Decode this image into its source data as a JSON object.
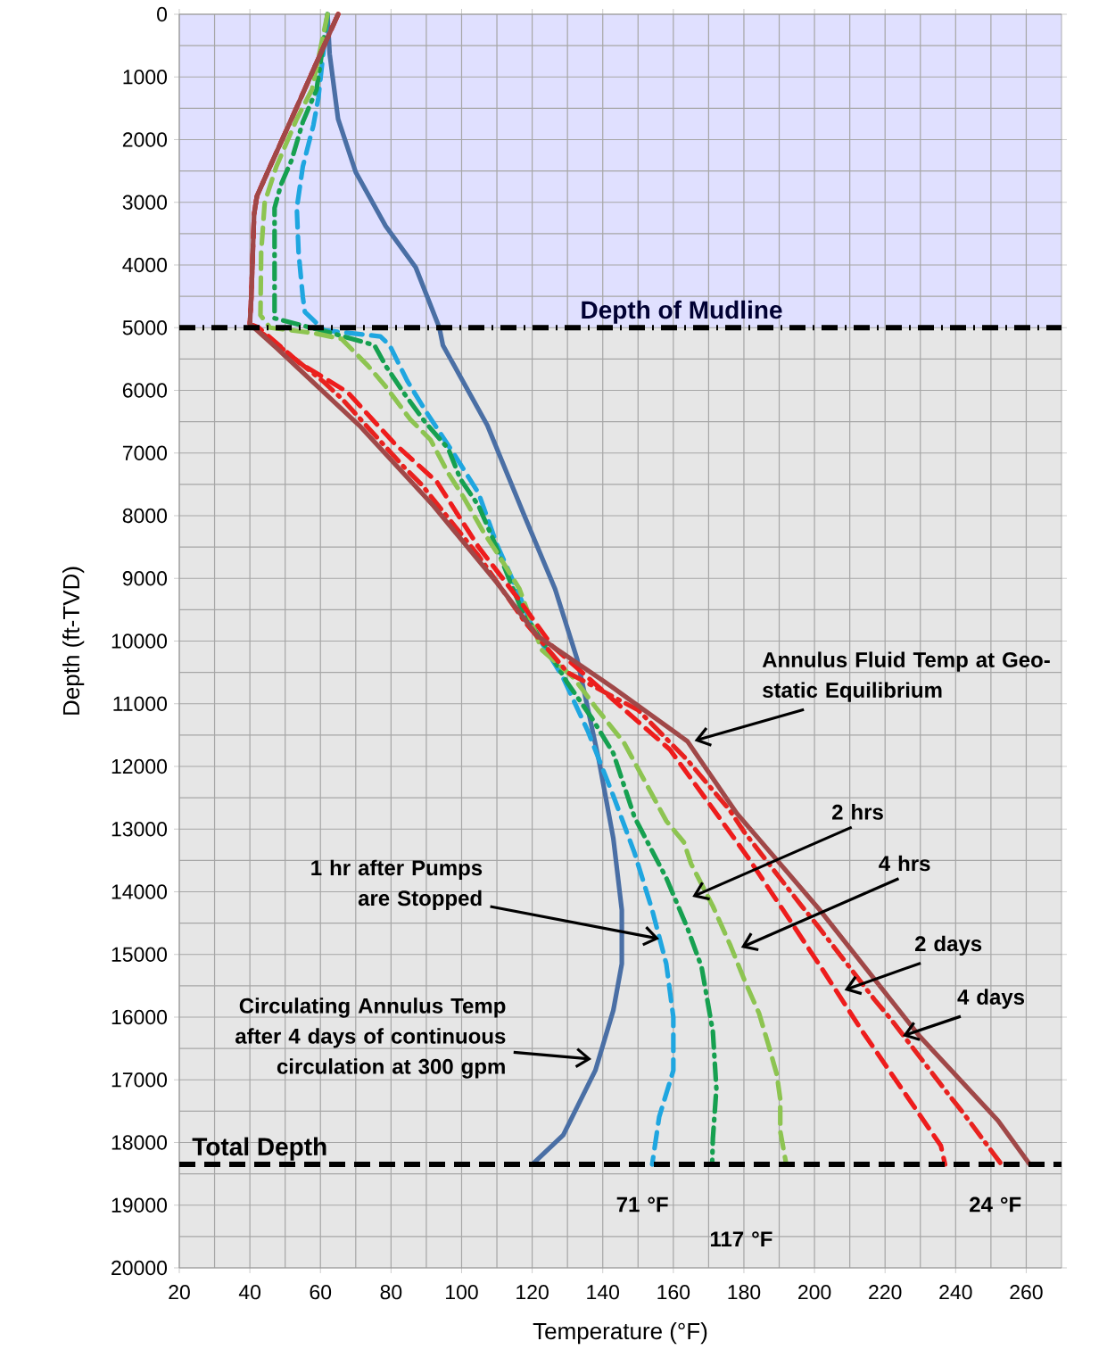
{
  "chart_data": {
    "type": "line",
    "xlabel": "Temperature (°F)",
    "ylabel": "Depth (ft-TVD)",
    "xlim": [
      20,
      270
    ],
    "xticks": [
      20,
      40,
      60,
      80,
      100,
      120,
      140,
      160,
      180,
      200,
      220,
      240,
      260
    ],
    "ylim": [
      20000,
      0
    ],
    "yticks": [
      0,
      1000,
      2000,
      3000,
      4000,
      5000,
      6000,
      7000,
      8000,
      9000,
      10000,
      11000,
      12000,
      13000,
      14000,
      15000,
      16000,
      17000,
      18000,
      19000,
      20000
    ],
    "grid": true,
    "bands": [
      {
        "axis": "y",
        "from": 0,
        "to": 5000,
        "color": "#e0e0ff"
      },
      {
        "axis": "y",
        "from": 5000,
        "to": 20000,
        "color": "#e6e6e6"
      }
    ],
    "ref_lines": [
      {
        "axis": "y",
        "value": 5000,
        "label": "Depth of Mudline",
        "color": "#000000",
        "line_style": "dashdot"
      },
      {
        "axis": "y",
        "value": 18350,
        "label": "Total Depth",
        "color": "#000000",
        "line_style": "dashed"
      }
    ],
    "series": [
      {
        "color": "#4a6fa5",
        "line_style": "solid",
        "x": [
          62,
          62.6,
          65,
          70,
          78.5,
          87,
          93.7,
          94.7,
          107.3,
          118,
          126.5,
          132.8,
          138.9,
          143,
          145.4,
          145.4,
          143,
          137.9,
          128.8,
          120
        ],
        "values": [
          0,
          630,
          1670,
          2520,
          3380,
          4040,
          5000,
          5280,
          6560,
          8030,
          9170,
          10300,
          11900,
          13150,
          14290,
          15150,
          15890,
          16850,
          17880,
          18350
        ]
      },
      {
        "color": "#1fa6e0",
        "line_style": "dashed",
        "x": [
          62,
          59.4,
          58,
          55,
          53.3,
          53.8,
          55,
          55.6,
          61,
          77,
          79.6,
          84.6,
          89.7,
          98,
          104.8,
          110,
          116.4,
          119.7,
          128.8,
          135.8,
          143,
          149,
          154,
          158,
          160,
          160,
          156,
          154
        ],
        "values": [
          0,
          1340,
          1770,
          2430,
          3090,
          3800,
          4510,
          4750,
          5040,
          5140,
          5280,
          5850,
          6320,
          7030,
          7640,
          8460,
          9270,
          9740,
          10590,
          11440,
          12470,
          13380,
          14290,
          15150,
          16000,
          16850,
          17590,
          18350
        ]
      },
      {
        "color": "#16a050",
        "line_style": "dashdot",
        "x": [
          62,
          58.9,
          55,
          51.8,
          48.8,
          47,
          47,
          63.4,
          75.3,
          78.5,
          83.6,
          89.7,
          96.2,
          99.7,
          104.8,
          108.8,
          117,
          124,
          129.8,
          136.8,
          143,
          149,
          158,
          164,
          168,
          171.2,
          172.2,
          171.2,
          171
        ],
        "values": [
          0,
          1200,
          1720,
          2330,
          2720,
          3090,
          4850,
          5090,
          5280,
          5610,
          6040,
          6510,
          6930,
          7420,
          7840,
          8360,
          9500,
          10100,
          10650,
          11220,
          11790,
          12810,
          13780,
          14580,
          15200,
          16230,
          17140,
          17940,
          18350
        ]
      },
      {
        "color": "#8dc451",
        "line_style": "dashed",
        "x": [
          62,
          57.6,
          53.3,
          47.5,
          44.2,
          43.2,
          43,
          45.7,
          58.4,
          66,
          73.5,
          78.5,
          85.4,
          91.2,
          96.2,
          100.5,
          106.3,
          110.6,
          116.4,
          122.7,
          131.8,
          137.9,
          146,
          158,
          163,
          165,
          171.2,
          176.2,
          180.3,
          184.3,
          187.3,
          189.3,
          190.3,
          190.3,
          192
        ],
        "values": [
          0,
          1200,
          1670,
          2430,
          3000,
          3800,
          4800,
          5000,
          5090,
          5180,
          5610,
          5940,
          6460,
          6790,
          7320,
          7700,
          8270,
          8640,
          9170,
          10140,
          10590,
          11050,
          11620,
          12870,
          13210,
          13550,
          14230,
          14860,
          15430,
          15940,
          16510,
          16910,
          17310,
          17820,
          18350
        ]
      },
      {
        "color": "#ee1c1c",
        "line_style": "dashed",
        "x": [
          65,
          60,
          53.3,
          45,
          42,
          41.2,
          40.4,
          40,
          42.5,
          54,
          67.7,
          81,
          93,
          104.8,
          116.4,
          125.7,
          144,
          159,
          170,
          181,
          192.4,
          202.5,
          213.6,
          224.7,
          235.8,
          237
        ],
        "values": [
          0,
          630,
          1480,
          2520,
          2900,
          3190,
          4510,
          4940,
          5000,
          5560,
          6030,
          6850,
          7460,
          8500,
          9350,
          10080,
          10990,
          11730,
          12580,
          13440,
          14400,
          15260,
          16230,
          17140,
          18050,
          18350
        ]
      },
      {
        "color": "#e8221f",
        "line_style": "dashdot",
        "x": [
          65,
          60,
          53.3,
          45,
          42,
          41.2,
          40.4,
          40,
          45.7,
          60.6,
          66,
          83.6,
          88.6,
          104.8,
          118,
          130,
          150,
          164,
          176,
          180,
          196.4,
          201,
          217,
          221.6,
          237.8,
          242.3,
          253
        ],
        "values": [
          0,
          630,
          1480,
          2520,
          2900,
          3190,
          4510,
          4940,
          5180,
          5850,
          6130,
          7220,
          7500,
          8640,
          9700,
          10500,
          11100,
          11900,
          12700,
          13040,
          14230,
          14550,
          15720,
          16030,
          17220,
          17540,
          18350
        ]
      },
      {
        "color": "#a04848",
        "line_style": "solid",
        "x": [
          65,
          60,
          53.3,
          45,
          42,
          41.2,
          40.4,
          40,
          47.5,
          71,
          92,
          110,
          121.5,
          142.6,
          164,
          178,
          201.5,
          229.7,
          252,
          261
        ],
        "values": [
          0,
          630,
          1480,
          2520,
          2900,
          3190,
          4510,
          4940,
          5320,
          6560,
          7840,
          9070,
          9920,
          10730,
          11600,
          12750,
          14290,
          16300,
          17650,
          18350
        ]
      }
    ],
    "annotations": [
      "Annulus Fluid Temp at Geo-static Equilibrium",
      "2 hrs",
      "4 hrs",
      "2 days",
      {
        "text": "4 days",
        "x": 225,
        "y": 16300
      },
      {
        "text": "1 hr after Pumps are Stopped",
        "x": 156,
        "y": 14750
      },
      "Circulating Annulus Temp after 4 days of continuous circulation at 300 gpm",
      "71 °F",
      "117 °F",
      "24 °F"
    ]
  }
}
